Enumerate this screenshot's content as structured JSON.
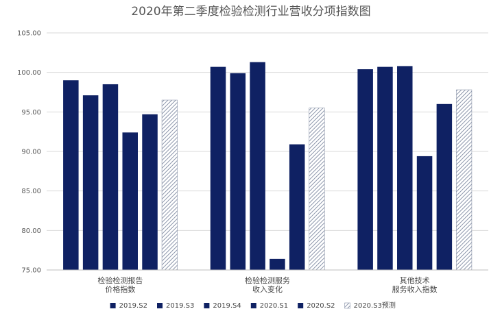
{
  "chart_data": {
    "type": "bar",
    "title": "2020年第二季度检验检测行业营收分项指数图",
    "xlabel": "",
    "ylabel": "",
    "ylim": [
      75,
      105
    ],
    "yticks": [
      75,
      80,
      85,
      90,
      95,
      100,
      105
    ],
    "ytick_labels": [
      "75.00",
      "80.00",
      "85.00",
      "90.00",
      "95.00",
      "100.00",
      "105.00"
    ],
    "grid": true,
    "legend_position": "bottom",
    "categories": [
      [
        "检验检测报告",
        "价格指数"
      ],
      [
        "检验检测服务",
        "收入变化"
      ],
      [
        "其他技术",
        "服务收入指数"
      ]
    ],
    "series": [
      {
        "name": "2019.S2",
        "values": [
          99.0,
          100.7,
          100.4
        ],
        "color": "#0f2163",
        "pattern": "solid"
      },
      {
        "name": "2019.S3",
        "values": [
          97.1,
          99.9,
          100.7
        ],
        "color": "#0f2163",
        "pattern": "solid"
      },
      {
        "name": "2019.S4",
        "values": [
          98.5,
          101.3,
          100.8
        ],
        "color": "#0f2163",
        "pattern": "solid"
      },
      {
        "name": "2020.S1",
        "values": [
          92.4,
          76.4,
          89.4
        ],
        "color": "#0f2163",
        "pattern": "solid"
      },
      {
        "name": "2020.S2",
        "values": [
          94.7,
          90.9,
          96.0
        ],
        "color": "#0f2163",
        "pattern": "solid"
      },
      {
        "name": "2020.S3预测",
        "values": [
          96.5,
          95.5,
          97.8
        ],
        "color": "#8b95aa",
        "pattern": "hatched"
      }
    ]
  }
}
